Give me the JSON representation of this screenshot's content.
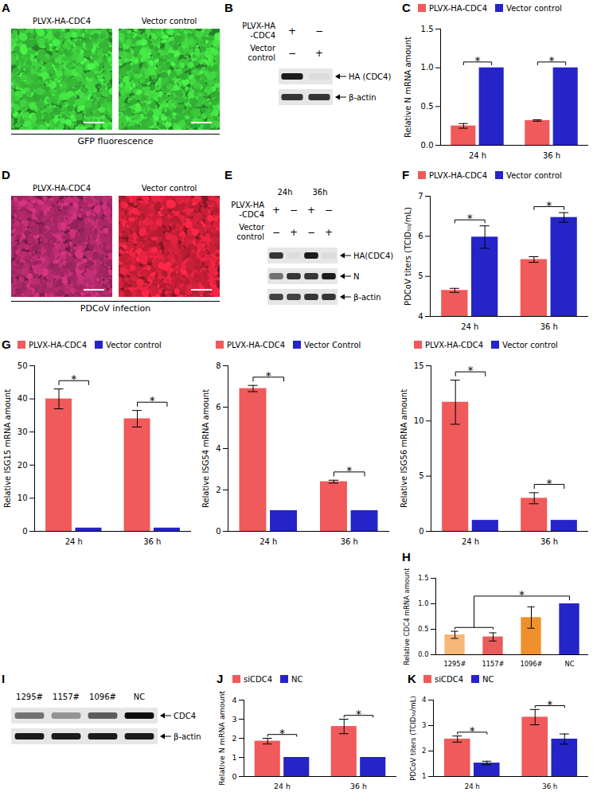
{
  "chart_data": [
    {
      "panel": "C",
      "type": "bar",
      "categories": [
        "24 h",
        "36 h"
      ],
      "y_label": "Relative N mRNA amount",
      "ylim": [
        0,
        1.5
      ],
      "yticks": [
        {
          "value": 0,
          "label": "0.0"
        },
        {
          "value": 0.5,
          "label": "0.5"
        },
        {
          "value": 1,
          "label": "1.0"
        },
        {
          "value": 1.5,
          "label": "1.5"
        }
      ],
      "legend": "top",
      "series": [
        {
          "name": "PLVX-HA-CDC4",
          "color": "#f05a5a",
          "values": [
            0.25,
            0.32
          ],
          "errors": [
            0.03,
            0.01
          ]
        },
        {
          "name": "Vector control",
          "color": "#2424c8",
          "values": [
            1,
            1
          ],
          "errors": [
            0,
            0
          ]
        }
      ],
      "significance": [
        "*",
        "*"
      ]
    },
    {
      "panel": "F",
      "type": "bar",
      "categories": [
        "24 h",
        "36 h"
      ],
      "y_label": "PDCoV titers (TCID₅₀/mL)",
      "ylim": [
        4,
        7
      ],
      "yticks": [
        4,
        5,
        6,
        7
      ],
      "legend": "top",
      "series": [
        {
          "name": "PLVX-HA-CDC4",
          "color": "#f05a5a",
          "values": [
            4.65,
            5.42
          ],
          "errors": [
            0.05,
            0.07
          ]
        },
        {
          "name": "Vector control",
          "color": "#2424c8",
          "values": [
            5.98,
            6.47
          ],
          "errors": [
            0.28,
            0.12
          ]
        }
      ],
      "significance": [
        "*",
        "*"
      ]
    },
    {
      "panel": "G",
      "type": "bar",
      "categories": [
        "24 h",
        "36 h"
      ],
      "y_label": "Relative ISG15 mRNA amount",
      "ylim": [
        0,
        50
      ],
      "yticks": [
        0,
        10,
        20,
        30,
        40,
        50
      ],
      "legend": "top",
      "series": [
        {
          "name": "PLVX-HA-CDC4",
          "color": "#f05a5a",
          "values": [
            40,
            34
          ],
          "errors": [
            3,
            2.5
          ]
        },
        {
          "name": "Vector control",
          "color": "#2424c8",
          "values": [
            1,
            1
          ],
          "errors": [
            0,
            0
          ]
        }
      ],
      "significance": [
        "*",
        "*"
      ]
    },
    {
      "type": "bar",
      "categories": [
        "24 h",
        "36 h"
      ],
      "y_label": "Relative ISG54 mRNA amount",
      "ylim": [
        0,
        8
      ],
      "yticks": [
        0,
        2,
        4,
        6,
        8
      ],
      "legend": "top",
      "series": [
        {
          "name": "PLVX-HA-CDC4",
          "color": "#f05a5a",
          "values": [
            6.9,
            2.4
          ],
          "errors": [
            0.15,
            0.07
          ]
        },
        {
          "name": "Vector Control",
          "color": "#2424c8",
          "values": [
            1,
            1
          ],
          "errors": [
            0,
            0
          ]
        }
      ],
      "significance": [
        "*",
        "*"
      ]
    },
    {
      "type": "bar",
      "categories": [
        "24 h",
        "36 h"
      ],
      "y_label": "Relative ISG56 mRNA amount",
      "ylim": [
        0,
        15
      ],
      "yticks": [
        0,
        5,
        10,
        15
      ],
      "legend": "top",
      "series": [
        {
          "name": "PLVX-HA-CDC4",
          "color": "#f05a5a",
          "values": [
            11.7,
            3.0
          ],
          "errors": [
            2.0,
            0.5
          ]
        },
        {
          "name": "Vector control",
          "color": "#2424c8",
          "values": [
            1,
            1
          ],
          "errors": [
            0,
            0
          ]
        }
      ],
      "significance": [
        "*",
        "*"
      ]
    },
    {
      "panel": "H",
      "type": "bar",
      "categories": [
        "1295#",
        "1157#",
        "1096#",
        "NC"
      ],
      "y_label": "Relative CDC4 mRNA amount",
      "ylim": [
        0,
        1.5
      ],
      "yticks": [
        {
          "value": 0,
          "label": "0.0"
        },
        {
          "value": 0.5,
          "label": "0.5"
        },
        {
          "value": 1,
          "label": "1.0"
        },
        {
          "value": 1.5,
          "label": "1.5"
        }
      ],
      "values": [
        0.39,
        0.35,
        0.73,
        1.0
      ],
      "errors": [
        0.07,
        0.08,
        0.21,
        0
      ],
      "colors": [
        "#f5b878",
        "#e85c5c",
        "#f0902c",
        "#2424c8"
      ],
      "comparisons": [
        {
          "left": [
            "1295#",
            "1157#"
          ],
          "right": [
            "NC"
          ],
          "label": "*"
        }
      ]
    },
    {
      "panel": "J",
      "type": "bar",
      "categories": [
        "24 h",
        "36 h"
      ],
      "y_label": "Relative N mRNA amount",
      "ylim": [
        0,
        4
      ],
      "yticks": [
        0,
        1,
        2,
        3,
        4
      ],
      "legend": "top",
      "series": [
        {
          "name": "siCDC4",
          "color": "#f05a5a",
          "values": [
            1.85,
            2.62
          ],
          "errors": [
            0.15,
            0.38
          ]
        },
        {
          "name": "NC",
          "color": "#2424c8",
          "values": [
            1,
            1
          ],
          "errors": [
            0,
            0
          ]
        }
      ],
      "significance": [
        "*",
        "*"
      ]
    },
    {
      "panel": "K",
      "type": "bar",
      "categories": [
        "24 h",
        "36 h"
      ],
      "y_label": "PDCoV titers (TCID₅₀/mL)",
      "ylim": [
        1,
        4
      ],
      "yticks": [
        1,
        2,
        3,
        4
      ],
      "legend": "top",
      "series": [
        {
          "name": "siCDC4",
          "color": "#f05a5a",
          "values": [
            2.47,
            3.33
          ],
          "errors": [
            0.12,
            0.3
          ]
        },
        {
          "name": "NC",
          "color": "#2424c8",
          "values": [
            1.53,
            2.47
          ],
          "errors": [
            0.07,
            0.2
          ]
        }
      ],
      "significance": [
        "*",
        "*"
      ]
    }
  ],
  "images": [
    {
      "panel": "A",
      "caption": "GFP fluorescence",
      "images": [
        {
          "label": "PLVX-HA-CDC4",
          "color": "#3cc83c"
        },
        {
          "label": "Vector control",
          "color": "#3cc83c"
        }
      ]
    },
    {
      "panel": "D",
      "caption": "PDCoV infection",
      "images": [
        {
          "label": "PLVX-HA-CDC4",
          "color": "#b02a6a"
        },
        {
          "label": "Vector control",
          "color": "#d0203a"
        }
      ]
    }
  ],
  "blots": [
    {
      "panel": "B",
      "conditions": [
        {
          "label": "PLVX-HA-CDC4",
          "marks": [
            "+",
            "−"
          ]
        },
        {
          "label": "Vector control",
          "marks": [
            "−",
            "+"
          ]
        }
      ],
      "bands": [
        {
          "label": "HA (CDC4)",
          "intensity": [
            0.95,
            0.1
          ]
        },
        {
          "label": "β-actin",
          "intensity": [
            0.85,
            0.85
          ]
        }
      ]
    },
    {
      "panel": "E",
      "lane_groups": [
        "24h",
        "36h"
      ],
      "conditions": [
        {
          "label": "PLVX-HA-CDC4",
          "marks": [
            "+",
            "−",
            "+",
            "−"
          ]
        },
        {
          "label": "Vector control",
          "marks": [
            "−",
            "+",
            "−",
            "+"
          ]
        }
      ],
      "bands": [
        {
          "label": "HA(CDC4)",
          "intensity": [
            0.85,
            0.1,
            0.95,
            0.1
          ]
        },
        {
          "label": "N",
          "intensity": [
            0.6,
            0.85,
            0.85,
            0.95
          ]
        },
        {
          "label": "β-actin",
          "intensity": [
            0.8,
            0.8,
            0.85,
            0.85
          ]
        }
      ]
    },
    {
      "panel": "I",
      "lanes": [
        "1295#",
        "1157#",
        "1096#",
        "NC"
      ],
      "bands": [
        {
          "label": "CDC4",
          "intensity": [
            0.6,
            0.45,
            0.7,
            1.0
          ]
        },
        {
          "label": "β-actin",
          "intensity": [
            0.95,
            0.95,
            0.95,
            0.95
          ]
        }
      ]
    }
  ]
}
